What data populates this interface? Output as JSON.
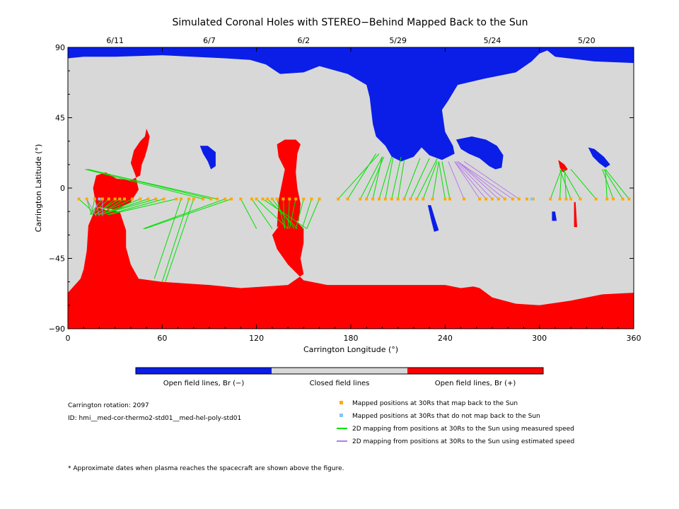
{
  "chart_data": {
    "type": "map",
    "title": "Simulated Coronal Holes with STEREO−Behind Mapped Back to the Sun",
    "xlabel": "Carrington Longitude (°)",
    "ylabel": "Carrington Latitude (°)",
    "xlim": [
      0,
      360
    ],
    "ylim": [
      -90,
      90
    ],
    "x_ticks": [
      0,
      60,
      120,
      180,
      240,
      300,
      360
    ],
    "y_ticks": [
      90,
      45,
      0,
      -45,
      -90
    ],
    "y_tick_labels": [
      "90",
      "45",
      "0",
      "−45",
      "−90"
    ],
    "top_axis_dates": [
      {
        "label": "6/11",
        "lon": 30
      },
      {
        "label": "6/7",
        "lon": 90
      },
      {
        "label": "6/2",
        "lon": 150
      },
      {
        "label": "5/29",
        "lon": 210
      },
      {
        "label": "5/24",
        "lon": 270
      },
      {
        "label": "5/20",
        "lon": 330
      }
    ],
    "colors": {
      "open_negative": "#0a1ee8",
      "closed": "#d8d8d8",
      "open_positive": "#ff0000",
      "mapped_point": "#ffaa00",
      "unmapped_point": "#8ac4f0",
      "measured_speed_line": "#00e000",
      "estimated_speed_line": "#b77aea"
    },
    "colorbar": {
      "labels": [
        "Open field lines, Br (−)",
        "Closed field lines",
        "Open field lines, Br (+)"
      ]
    },
    "info": {
      "rotation": "Carrington rotation: 2097",
      "id": "ID: hmi__med-cor-thermo2-std01__med-hel-poly-std01"
    },
    "legend": [
      {
        "kind": "square",
        "color": "#ffaa00",
        "label": "Mapped positions at 30Rs that map back to the Sun"
      },
      {
        "kind": "square",
        "color": "#8ac4f0",
        "label": "Mapped positions at 30Rs that do not map back to the Sun"
      },
      {
        "kind": "line",
        "color": "#00e000",
        "label": "2D mapping from positions at 30Rs to the Sun using measured speed"
      },
      {
        "kind": "line",
        "color": "#b77aea",
        "label": "2D mapping from positions at 30Rs to the Sun using estimated speed"
      }
    ],
    "footnote": "* Approximate dates when plasma reaches the spacecraft are shown above the figure.",
    "spacecraft_latitude": -7,
    "regions": [
      {
        "name": "north-polar-hole",
        "polarity": "negative",
        "points": [
          [
            0,
            90
          ],
          [
            360,
            90
          ],
          [
            360,
            80
          ],
          [
            335,
            81
          ],
          [
            310,
            84
          ],
          [
            305,
            88
          ],
          [
            300,
            86
          ],
          [
            295,
            81
          ],
          [
            285,
            74
          ],
          [
            265,
            70
          ],
          [
            248,
            66
          ],
          [
            242,
            56
          ],
          [
            238,
            50
          ],
          [
            240,
            36
          ],
          [
            245,
            27
          ],
          [
            246,
            22
          ],
          [
            238,
            18
          ],
          [
            230,
            21
          ],
          [
            225,
            26
          ],
          [
            220,
            20
          ],
          [
            212,
            17
          ],
          [
            206,
            20
          ],
          [
            202,
            27
          ],
          [
            196,
            33
          ],
          [
            194,
            41
          ],
          [
            192,
            58
          ],
          [
            190,
            66
          ],
          [
            178,
            73
          ],
          [
            160,
            78
          ],
          [
            150,
            74
          ],
          [
            135,
            73
          ],
          [
            126,
            79
          ],
          [
            116,
            82
          ],
          [
            100,
            83
          ],
          [
            60,
            85
          ],
          [
            30,
            84
          ],
          [
            10,
            84
          ],
          [
            0,
            83
          ]
        ]
      },
      {
        "name": "mid-negative-hole",
        "polarity": "negative",
        "points": [
          [
            247,
            31
          ],
          [
            257,
            33
          ],
          [
            266,
            31
          ],
          [
            273,
            27
          ],
          [
            277,
            21
          ],
          [
            276,
            13
          ],
          [
            272,
            12
          ],
          [
            268,
            14
          ],
          [
            262,
            19
          ],
          [
            255,
            22
          ],
          [
            250,
            25
          ]
        ]
      },
      {
        "name": "small-hole-88",
        "polarity": "negative",
        "points": [
          [
            84,
            27
          ],
          [
            89,
            27
          ],
          [
            94,
            23
          ],
          [
            94,
            14
          ],
          [
            91,
            12
          ],
          [
            89,
            17
          ],
          [
            86,
            22
          ]
        ]
      },
      {
        "name": "small-hole-340",
        "polarity": "negative",
        "points": [
          [
            331,
            26
          ],
          [
            335,
            25
          ],
          [
            341,
            20
          ],
          [
            345,
            15
          ],
          [
            342,
            13
          ],
          [
            338,
            16
          ],
          [
            334,
            20
          ]
        ]
      },
      {
        "name": "blue-fragments-232",
        "polarity": "negative",
        "points": [
          [
            229,
            -11
          ],
          [
            231,
            -11
          ],
          [
            234,
            -21
          ],
          [
            236,
            -27
          ],
          [
            233,
            -28
          ],
          [
            231,
            -20
          ]
        ]
      },
      {
        "name": "blue-fragment-309",
        "polarity": "negative",
        "points": [
          [
            308,
            -15
          ],
          [
            310,
            -15
          ],
          [
            311,
            -21
          ],
          [
            308,
            -21
          ]
        ]
      },
      {
        "name": "south-polar-hole",
        "polarity": "positive",
        "points": [
          [
            0,
            -90
          ],
          [
            360,
            -90
          ],
          [
            360,
            -67
          ],
          [
            340,
            -68
          ],
          [
            320,
            -72
          ],
          [
            300,
            -75
          ],
          [
            285,
            -74
          ],
          [
            270,
            -70
          ],
          [
            262,
            -64
          ],
          [
            258,
            -63
          ],
          [
            250,
            -64
          ],
          [
            240,
            -62
          ],
          [
            220,
            -62
          ],
          [
            200,
            -62
          ],
          [
            182,
            -62
          ],
          [
            165,
            -62
          ],
          [
            150,
            -59
          ],
          [
            140,
            -49
          ],
          [
            133,
            -39
          ],
          [
            130,
            -30
          ],
          [
            136,
            -22
          ],
          [
            144,
            -20
          ],
          [
            150,
            -26
          ],
          [
            150,
            -35
          ],
          [
            148,
            -45
          ],
          [
            150,
            -55
          ],
          [
            140,
            -62
          ],
          [
            110,
            -64
          ],
          [
            90,
            -62
          ],
          [
            60,
            -60
          ],
          [
            45,
            -58
          ],
          [
            40,
            -49
          ],
          [
            37,
            -38
          ],
          [
            37,
            -27
          ],
          [
            33,
            -15
          ],
          [
            24,
            -14
          ],
          [
            18,
            -12
          ],
          [
            13,
            -24
          ],
          [
            12,
            -40
          ],
          [
            10,
            -52
          ],
          [
            8,
            -58
          ],
          [
            0,
            -67
          ]
        ]
      },
      {
        "name": "positive-lobe-25",
        "polarity": "positive",
        "points": [
          [
            18,
            -12
          ],
          [
            24,
            -13
          ],
          [
            31,
            -14
          ],
          [
            40,
            -9
          ],
          [
            45,
            -1
          ],
          [
            43,
            8
          ],
          [
            40,
            16
          ],
          [
            42,
            24
          ],
          [
            46,
            30
          ],
          [
            49,
            33
          ],
          [
            50,
            38
          ],
          [
            52,
            33
          ],
          [
            51,
            27
          ],
          [
            49,
            20
          ],
          [
            47,
            15
          ],
          [
            46,
            8
          ],
          [
            40,
            5
          ],
          [
            31,
            6
          ],
          [
            24,
            10
          ],
          [
            18,
            8
          ],
          [
            16,
            0
          ]
        ]
      },
      {
        "name": "positive-lobe-140",
        "polarity": "positive",
        "points": [
          [
            133,
            -25
          ],
          [
            140,
            -22
          ],
          [
            147,
            -21
          ],
          [
            148,
            -10
          ],
          [
            146,
            0
          ],
          [
            145,
            10
          ],
          [
            146,
            22
          ],
          [
            148,
            28
          ],
          [
            145,
            31
          ],
          [
            138,
            31
          ],
          [
            133,
            28
          ],
          [
            134,
            20
          ],
          [
            138,
            12
          ],
          [
            136,
            2
          ],
          [
            134,
            -8
          ]
        ]
      },
      {
        "name": "positive-lobe-312",
        "polarity": "positive",
        "points": [
          [
            312,
            18
          ],
          [
            316,
            15
          ],
          [
            318,
            12
          ],
          [
            315,
            10
          ],
          [
            313,
            13
          ]
        ]
      },
      {
        "name": "positive-fragment-322",
        "polarity": "positive",
        "points": [
          [
            322,
            -9
          ],
          [
            323,
            -9
          ],
          [
            324,
            -25
          ],
          [
            322,
            -25
          ]
        ]
      }
    ],
    "mapped_positions_lon": [
      7,
      12,
      17,
      22,
      26,
      30,
      33,
      36,
      41,
      46,
      51,
      56,
      61,
      69,
      72,
      77,
      80,
      86,
      91,
      95,
      100,
      104,
      110,
      117,
      120,
      124,
      127,
      130,
      133,
      137,
      141,
      145,
      150,
      155,
      160,
      172,
      178,
      186,
      190,
      194,
      198,
      202,
      206,
      210,
      214,
      218,
      222,
      226,
      232,
      240,
      243,
      252,
      262,
      266,
      270,
      274,
      278,
      283,
      287,
      292,
      296,
      307,
      313,
      317,
      320,
      326,
      336,
      343,
      347,
      353,
      357
    ],
    "unmapped_positions_lon": [
      20,
      295
    ],
    "measured_speed_mappings": [
      [
        7,
        18
      ],
      [
        12,
        15
      ],
      [
        17,
        15
      ],
      [
        22,
        14
      ],
      [
        26,
        15
      ],
      [
        30,
        18
      ],
      [
        33,
        17
      ],
      [
        36,
        20
      ],
      [
        41,
        19
      ],
      [
        46,
        21
      ],
      [
        51,
        21
      ],
      [
        56,
        21
      ],
      [
        61,
        25
      ],
      [
        69,
        26
      ],
      [
        72,
        55
      ],
      [
        77,
        60
      ],
      [
        80,
        62
      ],
      [
        86,
        11
      ],
      [
        91,
        13
      ],
      [
        95,
        12
      ],
      [
        100,
        48
      ],
      [
        104,
        49
      ],
      [
        110,
        120
      ],
      [
        117,
        130
      ],
      [
        120,
        140
      ],
      [
        124,
        152
      ],
      [
        127,
        146
      ],
      [
        130,
        144
      ],
      [
        133,
        138
      ],
      [
        137,
        138
      ],
      [
        141,
        140
      ],
      [
        145,
        141
      ],
      [
        150,
        145
      ],
      [
        155,
        149
      ],
      [
        160,
        152
      ],
      [
        172,
        198
      ],
      [
        178,
        196
      ],
      [
        186,
        200
      ],
      [
        190,
        201
      ],
      [
        194,
        200
      ],
      [
        198,
        206
      ],
      [
        202,
        207
      ],
      [
        206,
        212
      ],
      [
        210,
        214
      ],
      [
        214,
        224
      ],
      [
        218,
        230
      ],
      [
        222,
        235
      ],
      [
        226,
        235
      ],
      [
        232,
        236
      ],
      [
        240,
        236
      ],
      [
        243,
        238
      ],
      [
        307,
        314
      ],
      [
        313,
        314
      ],
      [
        317,
        316
      ],
      [
        320,
        313
      ],
      [
        326,
        315
      ],
      [
        336,
        320
      ],
      [
        343,
        342
      ],
      [
        347,
        340
      ],
      [
        353,
        341
      ],
      [
        357,
        342
      ]
    ],
    "measured_speed_mappings_lat_end": [
      -17,
      -17,
      -17,
      -17,
      -17,
      -17,
      -17,
      -17,
      -17,
      -17,
      -17,
      -17,
      -17,
      -17,
      -58,
      -60,
      -60,
      12,
      12,
      12,
      -26,
      -26,
      -26,
      -26,
      -26,
      -26,
      -26,
      -26,
      -26,
      -26,
      -26,
      -26,
      -26,
      -26,
      -26,
      22,
      22,
      20,
      20,
      20,
      20,
      20,
      20,
      18,
      19,
      19,
      19,
      17,
      17,
      17,
      17,
      12,
      12,
      12,
      12,
      12,
      12,
      12,
      12,
      12,
      12
    ],
    "estimated_speed_mappings": [
      [
        12,
        18
      ],
      [
        17,
        20
      ],
      [
        22,
        22
      ],
      [
        252,
        242
      ],
      [
        262,
        246
      ],
      [
        266,
        246
      ],
      [
        270,
        247
      ],
      [
        274,
        248
      ],
      [
        278,
        248
      ],
      [
        283,
        248
      ],
      [
        287,
        252
      ]
    ],
    "estimated_speed_mappings_lat_end": [
      -18,
      -18,
      -18,
      17,
      17,
      17,
      17,
      17,
      17,
      17,
      17
    ]
  }
}
